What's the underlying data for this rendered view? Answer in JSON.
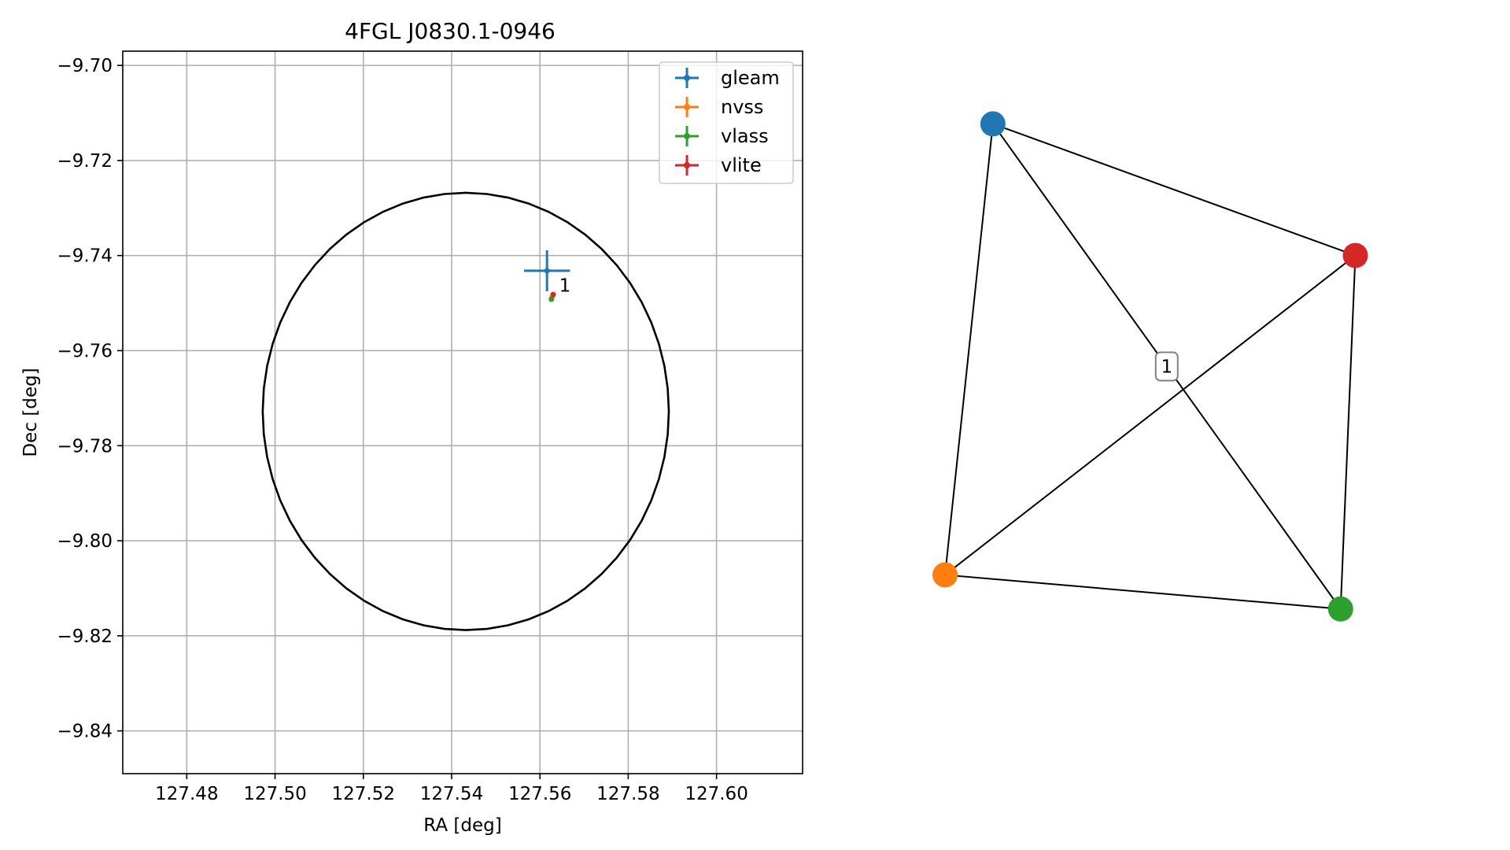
{
  "chart_data": [
    {
      "type": "scatter",
      "title": "4FGL J0830.1-0946",
      "xlabel": "RA [deg]",
      "ylabel": "Dec [deg]",
      "xlim": [
        127.4655,
        127.6195
      ],
      "ylim": [
        -9.849,
        -9.697
      ],
      "xticks": [
        127.48,
        127.5,
        127.52,
        127.54,
        127.56,
        127.58,
        127.6
      ],
      "xtick_labels": [
        "127.48",
        "127.50",
        "127.52",
        "127.54",
        "127.56",
        "127.58",
        "127.60"
      ],
      "yticks": [
        -9.7,
        -9.72,
        -9.74,
        -9.76,
        -9.78,
        -9.8,
        -9.82,
        -9.84
      ],
      "ytick_labels": [
        "−9.70",
        "−9.72",
        "−9.74",
        "−9.76",
        "−9.78",
        "−9.80",
        "−9.82",
        "−9.84"
      ],
      "grid": true,
      "legend_position": "upper right",
      "circle": {
        "center_ra": 127.5432,
        "center_dec": -9.7728,
        "radius": 0.046,
        "color": "#000000"
      },
      "series": [
        {
          "name": "gleam",
          "color": "#1f77b4",
          "ra": 127.5616,
          "dec": -9.7432,
          "ra_err": 0.0052,
          "dec_err": 0.0043
        },
        {
          "name": "nvss",
          "color": "#ff7f0e",
          "ra": 127.5627,
          "dec": -9.7488,
          "ra_err": 0.0003,
          "dec_err": 0.0003
        },
        {
          "name": "vlass",
          "color": "#2ca02c",
          "ra": 127.5626,
          "dec": -9.7492,
          "ra_err": 0.0001,
          "dec_err": 0.0001
        },
        {
          "name": "vlite",
          "color": "#d62728",
          "ra": 127.563,
          "dec": -9.7482,
          "ra_err": 0.0002,
          "dec_err": 0.0002
        }
      ],
      "annotations": [
        {
          "text": "1",
          "ra": 127.564,
          "dec": -9.7448
        }
      ]
    },
    {
      "type": "network",
      "nodes": [
        {
          "name": "gleam",
          "color": "#1f77b4",
          "x": 0.137,
          "y": 0.935
        },
        {
          "name": "vlite",
          "color": "#d62728",
          "x": 0.948,
          "y": 0.715
        },
        {
          "name": "nvss",
          "color": "#ff7f0e",
          "x": 0.03,
          "y": 0.181
        },
        {
          "name": "vlass",
          "color": "#2ca02c",
          "x": 0.915,
          "y": 0.124
        }
      ],
      "edges": [
        [
          "gleam",
          "vlite"
        ],
        [
          "gleam",
          "nvss"
        ],
        [
          "gleam",
          "vlass"
        ],
        [
          "vlite",
          "nvss"
        ],
        [
          "vlite",
          "vlass"
        ],
        [
          "nvss",
          "vlass"
        ]
      ],
      "edge_labels": [
        {
          "text": "1",
          "edge": [
            "gleam",
            "vlass"
          ]
        }
      ]
    }
  ]
}
